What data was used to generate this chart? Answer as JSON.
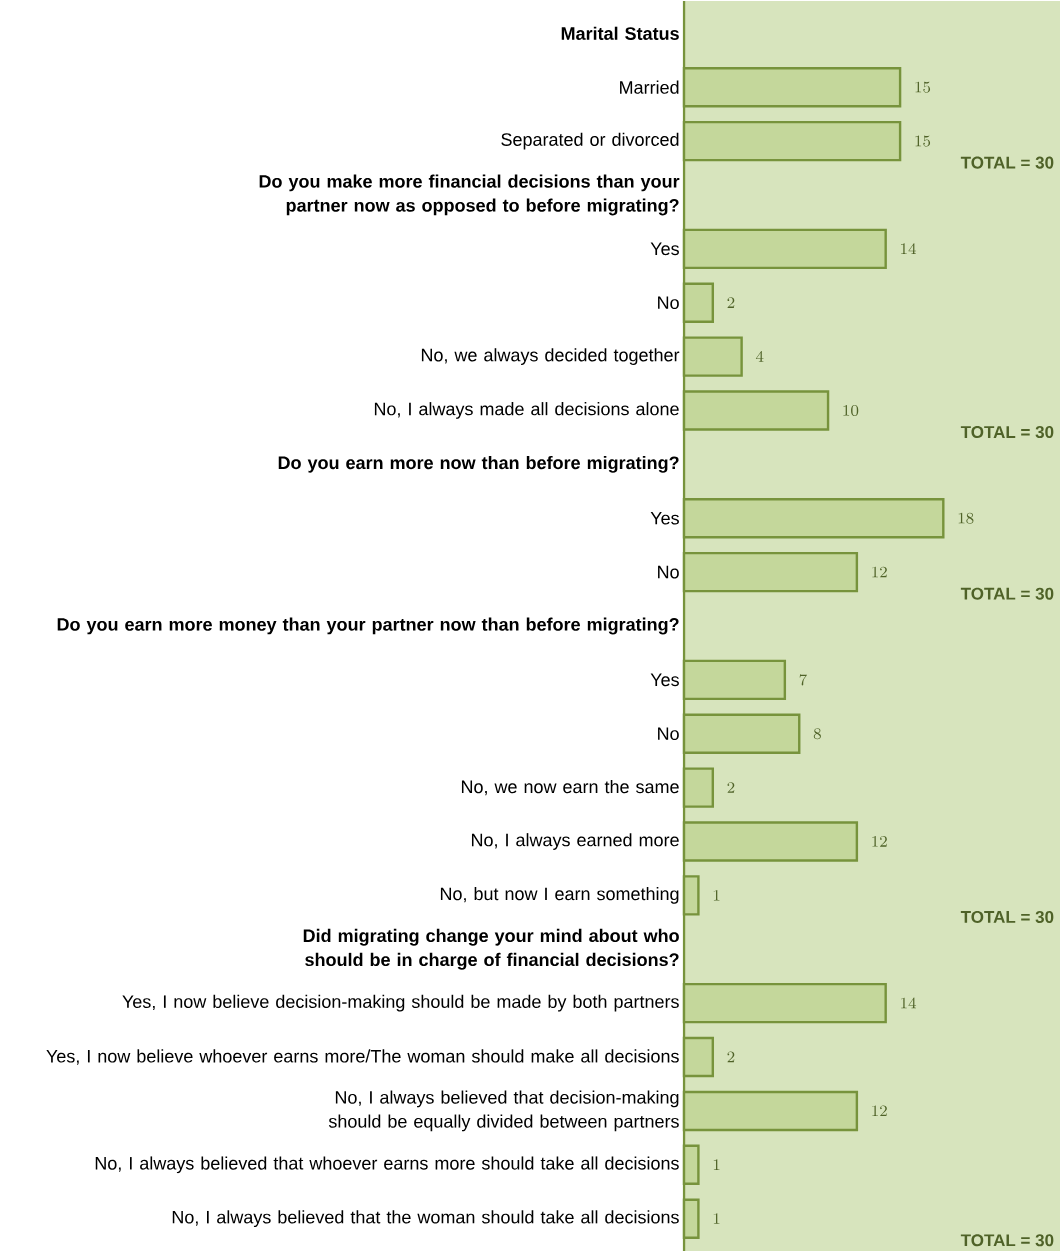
{
  "chart_data": {
    "type": "bar",
    "orientation": "horizontal",
    "data_labels": true,
    "tick_labels": "y",
    "color": "#c4d79b",
    "categories": [
      "Marital Status",
      "Married",
      "Separated or divorced",
      "Do you make more financial decisions than your partner now as opposed to before migrating?",
      "Yes",
      "No",
      "No, we always decided together",
      "No, I always made all decisions alone",
      "Do you earn more now than before migrating?",
      "Yes",
      "No",
      "Do you earn more money than your partner now than before migrating?",
      "Yes",
      "No",
      "No, we now earn the same",
      "No, I always earned more",
      "No, but now I earn something",
      "Did migrating change your mind about who should be in charge of financial decisions?",
      "Yes, I now believe decision-making should be made by both partners",
      "Yes, I now believe whoever earns more/The woman should make all decisions",
      "No, I always believed that decision-making should be equally divided between partners",
      "No, I always believed that whoever earns more should take all decisions",
      "No, I always believed that the woman should take all decisions"
    ],
    "values": [
      null,
      15,
      15,
      null,
      14,
      2,
      4,
      10,
      null,
      18,
      12,
      null,
      7,
      8,
      2,
      12,
      1,
      null,
      14,
      2,
      12,
      1,
      1
    ],
    "annotations": [
      "TOTAL = 30",
      "TOTAL = 30",
      "TOTAL = 30",
      "TOTAL = 30",
      "TOTAL = 30"
    ]
  }
}
